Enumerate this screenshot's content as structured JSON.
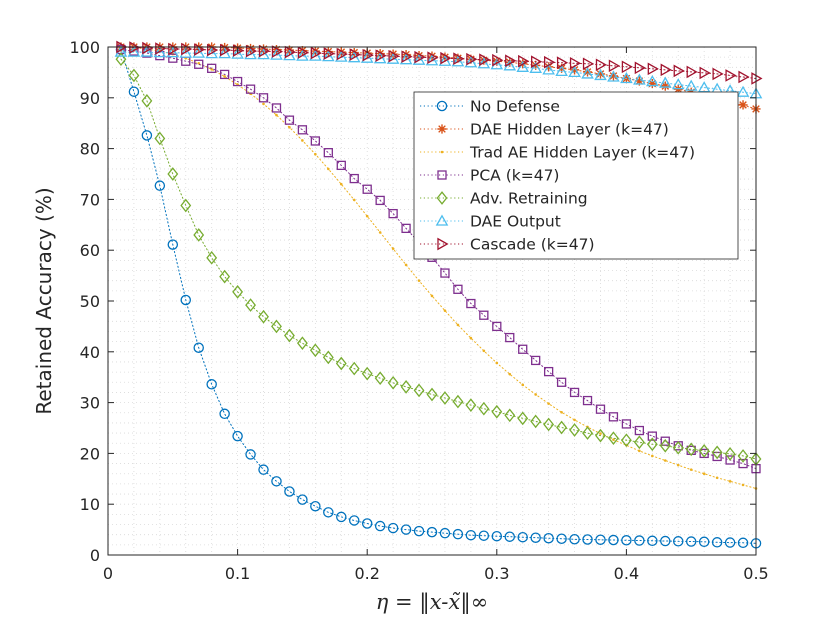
{
  "chart_data": {
    "type": "line",
    "title": "",
    "xlabel": "η = ‖x-x̃‖∞",
    "ylabel": "Retained Accuracy (%)",
    "xlim": [
      0,
      0.5
    ],
    "ylim": [
      0,
      100
    ],
    "xticks": [
      0,
      0.1,
      0.2,
      0.3,
      0.4,
      0.5
    ],
    "xtick_labels": [
      "0",
      "0.1",
      "0.2",
      "0.3",
      "0.4",
      "0.5"
    ],
    "yticks": [
      0,
      10,
      20,
      30,
      40,
      50,
      60,
      70,
      80,
      90,
      100
    ],
    "ytick_labels": [
      "0",
      "10",
      "20",
      "30",
      "40",
      "50",
      "60",
      "70",
      "80",
      "90",
      "100"
    ],
    "grid": true,
    "legend_position": "upper-right",
    "x": [
      0.01,
      0.02,
      0.03,
      0.04,
      0.05,
      0.06,
      0.07,
      0.08,
      0.09,
      0.1,
      0.11,
      0.12,
      0.13,
      0.14,
      0.15,
      0.16,
      0.17,
      0.18,
      0.19,
      0.2,
      0.21,
      0.22,
      0.23,
      0.24,
      0.25,
      0.26,
      0.27,
      0.28,
      0.29,
      0.3,
      0.31,
      0.32,
      0.33,
      0.34,
      0.35,
      0.36,
      0.37,
      0.38,
      0.39,
      0.4,
      0.41,
      0.42,
      0.43,
      0.44,
      0.45,
      0.46,
      0.47,
      0.48,
      0.49,
      0.5
    ],
    "series": [
      {
        "name": "No Defense",
        "color": "#0072BD",
        "marker": "circle",
        "line": "dotted",
        "values": [
          99.5,
          91.2,
          82.6,
          72.7,
          61.1,
          50.2,
          40.8,
          33.6,
          27.8,
          23.4,
          19.8,
          16.8,
          14.5,
          12.5,
          10.9,
          9.6,
          8.4,
          7.5,
          6.8,
          6.2,
          5.7,
          5.3,
          5.0,
          4.7,
          4.5,
          4.3,
          4.1,
          3.9,
          3.8,
          3.7,
          3.6,
          3.5,
          3.4,
          3.3,
          3.2,
          3.1,
          3.05,
          3.0,
          2.95,
          2.9,
          2.85,
          2.8,
          2.75,
          2.7,
          2.65,
          2.6,
          2.5,
          2.45,
          2.4,
          2.3
        ]
      },
      {
        "name": "DAE Hidden Layer (k=47)",
        "color": "#D95319",
        "marker": "asterisk",
        "line": "dotted",
        "values": [
          100,
          100,
          100,
          100,
          100,
          100,
          100,
          100,
          99.9,
          99.8,
          99.7,
          99.6,
          99.5,
          99.4,
          99.3,
          99.2,
          99.1,
          99.0,
          98.9,
          98.8,
          98.7,
          98.6,
          98.5,
          98.3,
          98.2,
          98.0,
          97.8,
          97.6,
          97.4,
          97.2,
          97.0,
          96.7,
          96.4,
          96.1,
          95.8,
          95.5,
          95.1,
          94.7,
          94.3,
          93.8,
          93.3,
          92.8,
          92.3,
          91.7,
          91.1,
          90.5,
          89.9,
          89.2,
          88.6,
          87.8
        ]
      },
      {
        "name": "Trad AE Hidden Layer (k=47)",
        "color": "#EDB120",
        "marker": "dot",
        "line": "dotted",
        "values": [
          100,
          99.9,
          99.6,
          99.2,
          98.6,
          97.8,
          96.8,
          95.6,
          94.2,
          92.6,
          90.8,
          88.8,
          86.6,
          84.2,
          81.6,
          78.9,
          76.0,
          73.0,
          69.9,
          66.7,
          63.5,
          60.3,
          57.1,
          54.0,
          51.0,
          48.1,
          45.3,
          42.7,
          40.2,
          37.8,
          35.6,
          33.5,
          31.6,
          29.8,
          28.1,
          26.6,
          25.2,
          23.9,
          22.7,
          21.6,
          20.5,
          19.5,
          18.6,
          17.7,
          16.8,
          16.0,
          15.2,
          14.5,
          13.8,
          13.1
        ]
      },
      {
        "name": "PCA (k=47)",
        "color": "#7E2F8E",
        "marker": "square",
        "line": "dotted",
        "values": [
          99.5,
          99.2,
          98.8,
          98.3,
          97.8,
          97.2,
          96.6,
          95.8,
          94.6,
          93.2,
          91.7,
          90.0,
          88.0,
          85.6,
          83.7,
          81.5,
          79.2,
          76.7,
          74.1,
          72.0,
          69.8,
          67.2,
          64.3,
          61.5,
          58.6,
          55.5,
          52.3,
          49.5,
          47.2,
          45.0,
          42.8,
          40.5,
          38.3,
          36.1,
          34.0,
          32.0,
          30.4,
          28.7,
          27.2,
          25.8,
          24.5,
          23.4,
          22.4,
          21.5,
          20.6,
          20.0,
          19.4,
          18.7,
          18.0,
          17.0
        ]
      },
      {
        "name": "Adv. Retraining",
        "color": "#77AC30",
        "marker": "diamond",
        "line": "dotted",
        "values": [
          97.6,
          94.4,
          89.4,
          82.0,
          75.0,
          68.8,
          63.0,
          58.5,
          54.8,
          51.8,
          49.2,
          46.9,
          45.0,
          43.2,
          41.7,
          40.3,
          38.9,
          37.7,
          36.7,
          35.7,
          34.8,
          33.9,
          33.1,
          32.4,
          31.6,
          30.9,
          30.2,
          29.5,
          28.8,
          28.2,
          27.5,
          26.9,
          26.3,
          25.7,
          25.1,
          24.6,
          24.0,
          23.5,
          23.0,
          22.6,
          22.2,
          21.8,
          21.5,
          21.1,
          20.8,
          20.5,
          20.2,
          19.9,
          19.5,
          18.9
        ]
      },
      {
        "name": "DAE Output",
        "color": "#4DBEEE",
        "marker": "triangle-up",
        "line": "dotted",
        "values": [
          99.0,
          99.0,
          99.0,
          98.9,
          98.9,
          98.8,
          98.8,
          98.7,
          98.7,
          98.6,
          98.5,
          98.5,
          98.4,
          98.3,
          98.2,
          98.2,
          98.1,
          98.0,
          97.9,
          97.8,
          97.7,
          97.6,
          97.5,
          97.4,
          97.3,
          97.2,
          97.1,
          96.9,
          96.7,
          96.5,
          96.3,
          96.0,
          95.8,
          95.5,
          95.2,
          95.0,
          94.7,
          94.4,
          94.1,
          93.8,
          93.5,
          93.2,
          92.9,
          92.6,
          92.3,
          92.0,
          91.7,
          91.4,
          91.1,
          90.8
        ]
      },
      {
        "name": "Cascade (k=47)",
        "color": "#A2142F",
        "marker": "triangle-right",
        "line": "dotted",
        "values": [
          100,
          99.9,
          99.8,
          99.7,
          99.6,
          99.6,
          99.5,
          99.4,
          99.4,
          99.3,
          99.2,
          99.2,
          99.1,
          99.0,
          98.9,
          98.8,
          98.7,
          98.6,
          98.5,
          98.4,
          98.3,
          98.2,
          98.1,
          98.0,
          97.9,
          97.8,
          97.7,
          97.6,
          97.5,
          97.4,
          97.3,
          97.2,
          97.1,
          97.0,
          96.9,
          96.8,
          96.7,
          96.5,
          96.3,
          96.1,
          95.9,
          95.7,
          95.5,
          95.3,
          95.1,
          94.9,
          94.7,
          94.4,
          94.1,
          93.8
        ]
      }
    ]
  }
}
